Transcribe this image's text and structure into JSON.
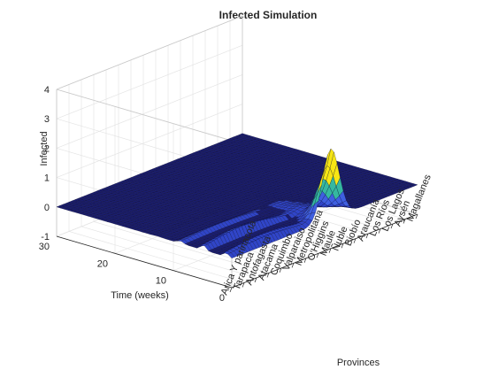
{
  "chart_data": {
    "type": "surface",
    "title": "Infected Simulation",
    "xlabel": "Provinces",
    "ylabel": "Time (weeks)",
    "zlabel": "Infected",
    "categories": [
      "Arica Y parinacota",
      "Tarapaca",
      "Antofagasta",
      "Atacama",
      "Coquimbo",
      "Valparaiso",
      "Metropolitana",
      "O'Higgins",
      "Maule",
      "Ñuble",
      "Biobío",
      "Araucanía",
      "Los Ríos",
      "Los Lagos",
      "Aysén",
      "Magallanes"
    ],
    "y_ticks": [
      0,
      10,
      20,
      30
    ],
    "z_ticks": [
      -1,
      0,
      1,
      2,
      3,
      4
    ],
    "ylim": [
      0,
      30
    ],
    "zlim": [
      -1,
      4
    ],
    "grid": true,
    "colormap": "parula",
    "colors": {
      "low": "#1a1d6e",
      "mid": "#3045c8",
      "high": "#f7e614",
      "edge": "#0b0b33"
    },
    "peak": {
      "province_index": 8,
      "week": 0,
      "value": 2.4
    }
  }
}
